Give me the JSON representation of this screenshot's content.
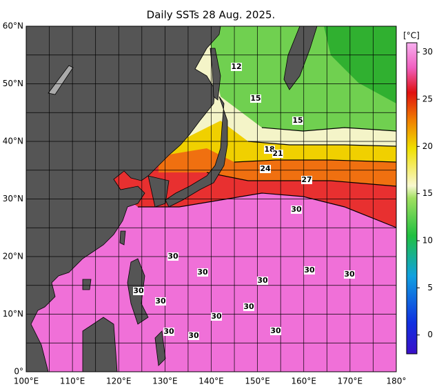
{
  "title": "Daily SSTs 28 Aug. 2025.",
  "lat_labels": [
    "0°",
    "10°N",
    "20°N",
    "30°N",
    "40°N",
    "50°N",
    "60°N"
  ],
  "lon_labels": [
    "100°E",
    "110°E",
    "120°E",
    "130°E",
    "140°E",
    "150°E",
    "160°E",
    "170°E",
    "180°"
  ],
  "colorbar": {
    "unit": "[°C]",
    "range": [
      -2,
      31
    ],
    "ticks": [
      0,
      5,
      10,
      15,
      20,
      25,
      30
    ]
  },
  "contour_labels": [
    12,
    15,
    15,
    18,
    21,
    24,
    27,
    30,
    30,
    30,
    30,
    30,
    30,
    30,
    30,
    30,
    30,
    30,
    30,
    30
  ]
}
